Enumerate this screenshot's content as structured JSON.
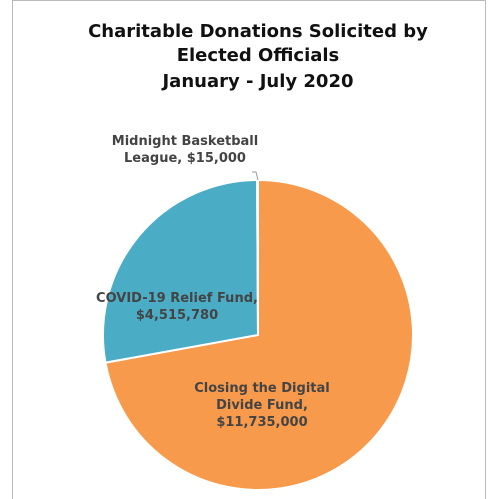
{
  "chart_data": {
    "type": "pie",
    "title": "Charitable Donations Solicited by Elected Officials",
    "subtitle": "January - July 2020",
    "categories": [
      "Closing the Digital Divide Fund",
      "COVID-19 Relief Fund",
      "Midnight Basketball League"
    ],
    "values": [
      11735000,
      4515780,
      15000
    ],
    "value_labels": [
      "$11,735,000",
      "$4,515,780",
      "$15,000"
    ],
    "colors": [
      "#f79a4b",
      "#4bacc6",
      "#9bbb59"
    ]
  }
}
